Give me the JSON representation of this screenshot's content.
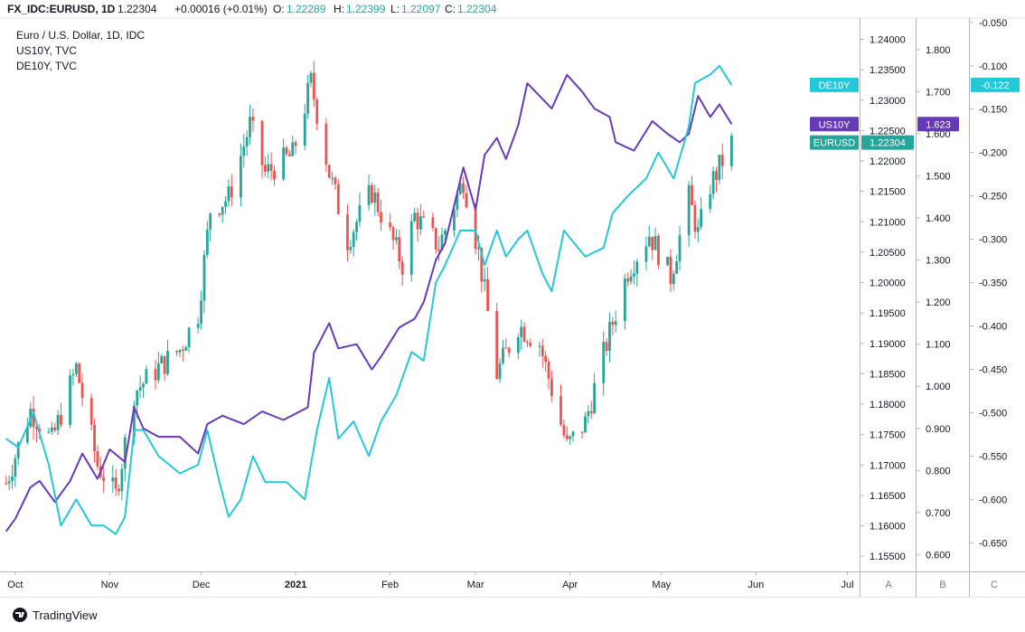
{
  "header": {
    "symbol": "FX_IDC:EURUSD, 1D",
    "last": "1.22304",
    "change": "+0.00016 (+0.01%)",
    "o_label": "O:",
    "o": "1.22289",
    "h_label": "H:",
    "h": "1.22399",
    "l_label": "L:",
    "l": "1.22097",
    "c_label": "C:",
    "c": "1.22304"
  },
  "legend": [
    "Euro / U.S. Dollar, 1D, IDC",
    "US10Y, TVC",
    "DE10Y, TVC"
  ],
  "footer": {
    "brand": "TradingView",
    "scale_buttons": [
      "A",
      "B",
      "C"
    ]
  },
  "colors": {
    "up": "#26a69a",
    "down": "#ef5350",
    "us10y": "#673ab7",
    "de10y": "#26c6da",
    "eurusd_badge": "#26a69a"
  },
  "chart_data": {
    "type": "line",
    "candle_series_name": "EURUSD",
    "x_labels": [
      {
        "x": "2020-10-01",
        "label": "Oct"
      },
      {
        "x": "2020-11-01",
        "label": "Nov"
      },
      {
        "x": "2020-12-01",
        "label": "Dec"
      },
      {
        "x": "2021-01-01",
        "label": "2021"
      },
      {
        "x": "2021-02-01",
        "label": "Feb"
      },
      {
        "x": "2021-03-01",
        "label": "Mar"
      },
      {
        "x": "2021-04-01",
        "label": "Apr"
      },
      {
        "x": "2021-05-01",
        "label": "May"
      },
      {
        "x": "2021-06-01",
        "label": "Jun"
      },
      {
        "x": "2021-07-01",
        "label": "Jul"
      }
    ],
    "xlim": [
      "2020-09-26",
      "2021-07-05"
    ],
    "axes": [
      {
        "name": "A",
        "ylim": [
          1.1525,
          1.2435
        ],
        "ticks": [
          "1.15500",
          "1.16000",
          "1.16500",
          "1.17000",
          "1.17500",
          "1.18000",
          "1.18500",
          "1.19000",
          "1.19500",
          "1.20000",
          "1.20500",
          "1.21000",
          "1.21500",
          "1.22000",
          "1.22500",
          "1.23000",
          "1.23500",
          "1.24000"
        ]
      },
      {
        "name": "B",
        "ylim": [
          0.56,
          1.875
        ],
        "ticks": [
          "0.600",
          "0.700",
          "0.800",
          "0.900",
          "1.000",
          "1.100",
          "1.200",
          "1.300",
          "1.400",
          "1.500",
          "1.600",
          "1.700",
          "1.800"
        ]
      },
      {
        "name": "C",
        "ylim": [
          -0.683,
          -0.045
        ],
        "ticks": [
          "-0.650",
          "-0.600",
          "-0.550",
          "-0.500",
          "-0.450",
          "-0.400",
          "-0.350",
          "-0.300",
          "-0.250",
          "-0.200",
          "-0.150",
          "-0.100",
          "-0.050"
        ]
      }
    ],
    "eurusd_anchors": [
      [
        "2020-09-28",
        1.167
      ],
      [
        "2020-10-06",
        1.179
      ],
      [
        "2020-10-13",
        1.174
      ],
      [
        "2020-10-21",
        1.186
      ],
      [
        "2020-10-28",
        1.17
      ],
      [
        "2020-11-03",
        1.165
      ],
      [
        "2020-11-09",
        1.182
      ],
      [
        "2020-11-17",
        1.186
      ],
      [
        "2020-11-24",
        1.189
      ],
      [
        "2020-11-30",
        1.195
      ],
      [
        "2020-12-04",
        1.212
      ],
      [
        "2020-12-10",
        1.214
      ],
      [
        "2020-12-17",
        1.226
      ],
      [
        "2020-12-22",
        1.218
      ],
      [
        "2020-12-31",
        1.221
      ],
      [
        "2021-01-06",
        1.233
      ],
      [
        "2021-01-12",
        1.218
      ],
      [
        "2021-01-18",
        1.207
      ],
      [
        "2021-01-26",
        1.215
      ],
      [
        "2021-02-05",
        1.203
      ],
      [
        "2021-02-09",
        1.211
      ],
      [
        "2021-02-17",
        1.206
      ],
      [
        "2021-02-25",
        1.217
      ],
      [
        "2021-03-02",
        1.205
      ],
      [
        "2021-03-08",
        1.185
      ],
      [
        "2021-03-15",
        1.193
      ],
      [
        "2021-03-22",
        1.19
      ],
      [
        "2021-03-31",
        1.173
      ],
      [
        "2021-04-06",
        1.177
      ],
      [
        "2021-04-13",
        1.19
      ],
      [
        "2021-04-20",
        1.202
      ],
      [
        "2021-04-27",
        1.208
      ],
      [
        "2021-05-04",
        1.201
      ],
      [
        "2021-05-10",
        1.214
      ],
      [
        "2021-05-13",
        1.208
      ],
      [
        "2021-05-17",
        1.216
      ],
      [
        "2021-05-24",
        1.223
      ]
    ],
    "series": [
      {
        "name": "US10Y",
        "axis": "B",
        "color": "#673ab7",
        "last_label": "1.623",
        "points": [
          [
            "2020-09-28",
            0.655
          ],
          [
            "2020-10-01",
            0.685
          ],
          [
            "2020-10-06",
            0.76
          ],
          [
            "2020-10-09",
            0.775
          ],
          [
            "2020-10-14",
            0.725
          ],
          [
            "2020-10-19",
            0.775
          ],
          [
            "2020-10-23",
            0.84
          ],
          [
            "2020-10-28",
            0.78
          ],
          [
            "2020-11-01",
            0.85
          ],
          [
            "2020-11-06",
            0.82
          ],
          [
            "2020-11-09",
            0.95
          ],
          [
            "2020-11-12",
            0.9
          ],
          [
            "2020-11-17",
            0.88
          ],
          [
            "2020-11-24",
            0.88
          ],
          [
            "2020-11-30",
            0.84
          ],
          [
            "2020-12-03",
            0.91
          ],
          [
            "2020-12-08",
            0.93
          ],
          [
            "2020-12-15",
            0.91
          ],
          [
            "2020-12-21",
            0.94
          ],
          [
            "2020-12-28",
            0.92
          ],
          [
            "2021-01-05",
            0.95
          ],
          [
            "2021-01-07",
            1.08
          ],
          [
            "2021-01-12",
            1.15
          ],
          [
            "2021-01-15",
            1.09
          ],
          [
            "2021-01-21",
            1.1
          ],
          [
            "2021-01-26",
            1.04
          ],
          [
            "2021-01-29",
            1.07
          ],
          [
            "2021-02-04",
            1.14
          ],
          [
            "2021-02-09",
            1.16
          ],
          [
            "2021-02-12",
            1.2
          ],
          [
            "2021-02-16",
            1.3
          ],
          [
            "2021-02-19",
            1.34
          ],
          [
            "2021-02-25",
            1.52
          ],
          [
            "2021-03-01",
            1.42
          ],
          [
            "2021-03-04",
            1.55
          ],
          [
            "2021-03-08",
            1.59
          ],
          [
            "2021-03-11",
            1.54
          ],
          [
            "2021-03-15",
            1.62
          ],
          [
            "2021-03-18",
            1.72
          ],
          [
            "2021-03-22",
            1.69
          ],
          [
            "2021-03-26",
            1.66
          ],
          [
            "2021-03-31",
            1.74
          ],
          [
            "2021-04-05",
            1.7
          ],
          [
            "2021-04-09",
            1.66
          ],
          [
            "2021-04-14",
            1.64
          ],
          [
            "2021-04-16",
            1.58
          ],
          [
            "2021-04-22",
            1.56
          ],
          [
            "2021-04-28",
            1.63
          ],
          [
            "2021-05-03",
            1.6
          ],
          [
            "2021-05-07",
            1.58
          ],
          [
            "2021-05-10",
            1.6
          ],
          [
            "2021-05-13",
            1.69
          ],
          [
            "2021-05-17",
            1.64
          ],
          [
            "2021-05-20",
            1.67
          ],
          [
            "2021-05-24",
            1.623
          ]
        ]
      },
      {
        "name": "DE10Y",
        "axis": "C",
        "color": "#26c6da",
        "last_label": "-0.122",
        "points": [
          [
            "2020-09-28",
            -0.53
          ],
          [
            "2020-10-02",
            -0.54
          ],
          [
            "2020-10-07",
            -0.5
          ],
          [
            "2020-10-12",
            -0.56
          ],
          [
            "2020-10-16",
            -0.63
          ],
          [
            "2020-10-21",
            -0.6
          ],
          [
            "2020-10-26",
            -0.63
          ],
          [
            "2020-10-30",
            -0.63
          ],
          [
            "2020-11-03",
            -0.64
          ],
          [
            "2020-11-06",
            -0.62
          ],
          [
            "2020-11-09",
            -0.52
          ],
          [
            "2020-11-12",
            -0.52
          ],
          [
            "2020-11-17",
            -0.55
          ],
          [
            "2020-11-24",
            -0.57
          ],
          [
            "2020-11-30",
            -0.56
          ],
          [
            "2020-12-03",
            -0.52
          ],
          [
            "2020-12-07",
            -0.58
          ],
          [
            "2020-12-10",
            -0.62
          ],
          [
            "2020-12-14",
            -0.6
          ],
          [
            "2020-12-18",
            -0.55
          ],
          [
            "2020-12-22",
            -0.58
          ],
          [
            "2020-12-29",
            -0.58
          ],
          [
            "2021-01-04",
            -0.6
          ],
          [
            "2021-01-08",
            -0.52
          ],
          [
            "2021-01-12",
            -0.46
          ],
          [
            "2021-01-15",
            -0.53
          ],
          [
            "2021-01-20",
            -0.51
          ],
          [
            "2021-01-25",
            -0.55
          ],
          [
            "2021-01-29",
            -0.51
          ],
          [
            "2021-02-03",
            -0.48
          ],
          [
            "2021-02-08",
            -0.43
          ],
          [
            "2021-02-12",
            -0.44
          ],
          [
            "2021-02-16",
            -0.35
          ],
          [
            "2021-02-19",
            -0.33
          ],
          [
            "2021-02-24",
            -0.29
          ],
          [
            "2021-03-01",
            -0.29
          ],
          [
            "2021-03-04",
            -0.33
          ],
          [
            "2021-03-08",
            -0.29
          ],
          [
            "2021-03-11",
            -0.32
          ],
          [
            "2021-03-15",
            -0.3
          ],
          [
            "2021-03-18",
            -0.29
          ],
          [
            "2021-03-23",
            -0.34
          ],
          [
            "2021-03-26",
            -0.36
          ],
          [
            "2021-03-30",
            -0.29
          ],
          [
            "2021-04-06",
            -0.32
          ],
          [
            "2021-04-12",
            -0.31
          ],
          [
            "2021-04-15",
            -0.27
          ],
          [
            "2021-04-20",
            -0.25
          ],
          [
            "2021-04-26",
            -0.23
          ],
          [
            "2021-04-30",
            -0.2
          ],
          [
            "2021-05-05",
            -0.23
          ],
          [
            "2021-05-10",
            -0.17
          ],
          [
            "2021-05-12",
            -0.12
          ],
          [
            "2021-05-17",
            -0.11
          ],
          [
            "2021-05-20",
            -0.1
          ],
          [
            "2021-05-24",
            -0.122
          ]
        ]
      }
    ],
    "badges": [
      {
        "name": "DE10Y",
        "value": "-0.122",
        "color": "#26c6da"
      },
      {
        "name": "US10Y",
        "value": "1.623",
        "color": "#673ab7"
      },
      {
        "name": "EURUSD",
        "value": "1.22304",
        "color": "#26a69a"
      }
    ]
  }
}
